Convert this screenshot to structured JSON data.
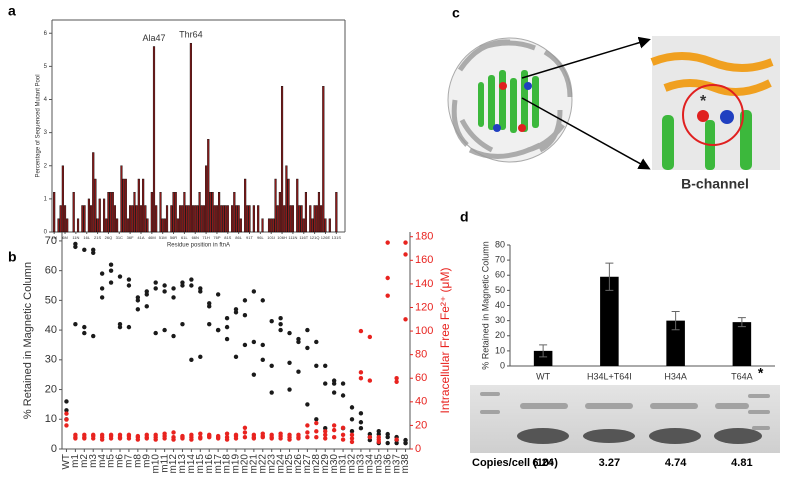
{
  "chart_data": [
    {
      "type": "bar",
      "panel": "a",
      "ylabel": "Percentage of Sequenced Mutant Pool",
      "xlabel": "Residue position in ftnA",
      "x": [
        1,
        3,
        4,
        5,
        6,
        7,
        10,
        12,
        14,
        15,
        17,
        18,
        19,
        20,
        21,
        22,
        24,
        25,
        26,
        27,
        28,
        29,
        30,
        32,
        33,
        34,
        35,
        36,
        37,
        38,
        39,
        40,
        41,
        42,
        43,
        44,
        46,
        47,
        48,
        50,
        51,
        52,
        53,
        55,
        56,
        57,
        58,
        59,
        60,
        61,
        62,
        63,
        64,
        65,
        66,
        67,
        68,
        69,
        70,
        71,
        72,
        73,
        74,
        75,
        76,
        77,
        78,
        79,
        80,
        81,
        83,
        84,
        85,
        86,
        87,
        89,
        90,
        91,
        93,
        95,
        97,
        100,
        101,
        102,
        103,
        104,
        105,
        106,
        107,
        108,
        109,
        110,
        111,
        113,
        114,
        115,
        116,
        117,
        119,
        120,
        121,
        122,
        123,
        124,
        125,
        126,
        128,
        131
      ],
      "values": [
        1.2,
        0.4,
        0.8,
        2.0,
        0.8,
        0.4,
        1.2,
        0.4,
        0.8,
        0.8,
        1.0,
        0.8,
        2.4,
        1.6,
        0.4,
        1.0,
        1.0,
        0.4,
        1.2,
        1.2,
        1.2,
        0.8,
        0.4,
        2.0,
        1.6,
        1.6,
        0.4,
        0.8,
        0.8,
        1.2,
        0.8,
        1.6,
        0.8,
        1.6,
        0.8,
        0.4,
        1.2,
        5.6,
        0.8,
        1.2,
        0.4,
        0.4,
        0.8,
        0.8,
        1.2,
        1.2,
        0.4,
        0.8,
        0.8,
        1.2,
        0.8,
        0.8,
        5.7,
        0.8,
        0.8,
        0.8,
        1.2,
        0.8,
        0.8,
        2.0,
        2.8,
        1.2,
        1.2,
        0.8,
        0.8,
        1.2,
        0.8,
        0.8,
        0.8,
        0.8,
        0.8,
        1.2,
        0.8,
        0.8,
        0.4,
        1.6,
        0.8,
        0.8,
        0.8,
        0.8,
        0.4,
        0.4,
        0.4,
        0.4,
        1.6,
        0.8,
        1.2,
        4.4,
        0.8,
        2.0,
        1.6,
        0.8,
        0.8,
        1.6,
        0.8,
        0.8,
        0.4,
        1.2,
        0.8,
        0.4,
        0.8,
        0.8,
        1.2,
        0.8,
        4.4,
        0.4,
        0.4,
        1.2
      ],
      "color": "#8b1a1a",
      "annotations": [
        {
          "label": "Ala47",
          "x": 47,
          "y": 5.6
        },
        {
          "label": "Thr64",
          "x": 64,
          "y": 5.7
        }
      ],
      "xlim": [
        0,
        135
      ],
      "ylim": [
        0,
        6.4
      ],
      "yticks": [
        0,
        1,
        2,
        3,
        4,
        5,
        6
      ],
      "xticks": [
        {
          "value": 1,
          "label": "1M"
        },
        {
          "value": 6,
          "label": "6M"
        },
        {
          "value": 11,
          "label": "11N"
        },
        {
          "value": 16,
          "label": "16L"
        },
        {
          "value": 21,
          "label": "21S"
        },
        {
          "value": 26,
          "label": "26Q"
        },
        {
          "value": 31,
          "label": "31C"
        },
        {
          "value": 36,
          "label": "36F"
        },
        {
          "value": 41,
          "label": "41A"
        },
        {
          "value": 46,
          "label": "46M"
        },
        {
          "value": 51,
          "label": "51M"
        },
        {
          "value": 56,
          "label": "56R"
        },
        {
          "value": 61,
          "label": "61L"
        },
        {
          "value": 66,
          "label": "66N"
        },
        {
          "value": 71,
          "label": "71H"
        },
        {
          "value": 76,
          "label": "76P"
        },
        {
          "value": 81,
          "label": "81S"
        },
        {
          "value": 86,
          "label": "86L"
        },
        {
          "value": 91,
          "label": "91T"
        },
        {
          "value": 96,
          "label": "96L"
        },
        {
          "value": 101,
          "label": "101I"
        },
        {
          "value": 106,
          "label": "106H"
        },
        {
          "value": 111,
          "label": "111N"
        },
        {
          "value": 116,
          "label": "116T"
        },
        {
          "value": 121,
          "label": "121Q"
        },
        {
          "value": 126,
          "label": "126E"
        },
        {
          "value": 131,
          "label": "131S"
        }
      ]
    },
    {
      "type": "scatter",
      "panel": "b",
      "ylabel": "% Retained in Magnetic Column",
      "y2label": "Intracellular Free Fe²⁺ (μM)",
      "categories": [
        "WT",
        "m1",
        "m2",
        "m3",
        "m4",
        "m5",
        "m6",
        "m7",
        "m8",
        "m9",
        "m10",
        "m11",
        "m12",
        "m13",
        "m14",
        "m15",
        "m16",
        "m17",
        "m18",
        "m19",
        "m20",
        "m21",
        "m22",
        "m23",
        "m24",
        "m25",
        "m26",
        "m27",
        "m28",
        "m29",
        "m30",
        "m31",
        "m32",
        "m33",
        "m34",
        "m35",
        "m36",
        "m37",
        "m38"
      ],
      "series": [
        {
          "color": "#1a1a1a",
          "values": [
            [
              16,
              13,
              10
            ],
            [
              69,
              68,
              42
            ],
            [
              67,
              41,
              39
            ],
            [
              67,
              66,
              38
            ],
            [
              59,
              54,
              51
            ],
            [
              62,
              60,
              56
            ],
            [
              58,
              42,
              41
            ],
            [
              57,
              55,
              41
            ],
            [
              51,
              50,
              47
            ],
            [
              53,
              52,
              48
            ],
            [
              56,
              54,
              39
            ],
            [
              55,
              53,
              40
            ],
            [
              54,
              51,
              38
            ],
            [
              56,
              55,
              42
            ],
            [
              57,
              55,
              30
            ],
            [
              54,
              53,
              31
            ],
            [
              49,
              48,
              42
            ],
            [
              52,
              40,
              40
            ],
            [
              44,
              41,
              37
            ],
            [
              47,
              46,
              31
            ],
            [
              50,
              45,
              35
            ],
            [
              53,
              36,
              25
            ],
            [
              50,
              35,
              30
            ],
            [
              43,
              28,
              19
            ],
            [
              44,
              42,
              40
            ],
            [
              39,
              29,
              20
            ],
            [
              37,
              36,
              26
            ],
            [
              40,
              34,
              15
            ],
            [
              36,
              28,
              10
            ],
            [
              28,
              22,
              7
            ],
            [
              23,
              22,
              19
            ],
            [
              22,
              18,
              7
            ],
            [
              14,
              10,
              6
            ],
            [
              12,
              9,
              7
            ],
            [
              5,
              4,
              3
            ],
            [
              6,
              5,
              2
            ],
            [
              5,
              4,
              2
            ],
            [
              4,
              3,
              2
            ],
            [
              3,
              2,
              2
            ]
          ]
        },
        {
          "color": "#e8231f",
          "axis": "y2",
          "values": [
            [
              30,
              25,
              20
            ],
            [
              10,
              12,
              9
            ],
            [
              12,
              9,
              10
            ],
            [
              11,
              12,
              9
            ],
            [
              10,
              12,
              8
            ],
            [
              11,
              9,
              12
            ],
            [
              10,
              12,
              9
            ],
            [
              12,
              9,
              11
            ],
            [
              10,
              11,
              8
            ],
            [
              9,
              12,
              10
            ],
            [
              12,
              10,
              8
            ],
            [
              11,
              13,
              9
            ],
            [
              14,
              10,
              8
            ],
            [
              9,
              11,
              10
            ],
            [
              12,
              10,
              8
            ],
            [
              10,
              13,
              9
            ],
            [
              12,
              10,
              11
            ],
            [
              9,
              11,
              10
            ],
            [
              13,
              10,
              8
            ],
            [
              12,
              11,
              9
            ],
            [
              18,
              14,
              10
            ],
            [
              12,
              10,
              9
            ],
            [
              11,
              13,
              10
            ],
            [
              12,
              9,
              10
            ],
            [
              13,
              11,
              9
            ],
            [
              10,
              12,
              8
            ],
            [
              12,
              10,
              9
            ],
            [
              20,
              14,
              10
            ],
            [
              22,
              15,
              10
            ],
            [
              15,
              12,
              9
            ],
            [
              20,
              16,
              10
            ],
            [
              18,
              12,
              8
            ],
            [
              12,
              9,
              6
            ],
            [
              100,
              65,
              60
            ],
            [
              95,
              58,
              10
            ],
            [
              10,
              8,
              6
            ],
            [
              145,
              130,
              175
            ],
            [
              60,
              57,
              8
            ],
            [
              175,
              165,
              110
            ]
          ]
        }
      ],
      "ylim": [
        0,
        73
      ],
      "yticks": [
        0,
        10,
        20,
        30,
        40,
        50,
        60,
        70
      ],
      "y2lim": [
        0,
        184
      ],
      "y2ticks": [
        0,
        20,
        40,
        60,
        80,
        100,
        120,
        140,
        160,
        180
      ]
    },
    {
      "type": "bar",
      "panel": "d",
      "ylabel": "% Retained in Magnetic Column",
      "categories": [
        "WT",
        "H34L+T64I",
        "H34A",
        "T64A"
      ],
      "values": [
        10,
        59,
        30,
        29
      ],
      "errors": [
        4,
        9,
        6,
        3
      ],
      "color": "#000000",
      "note": "*",
      "ylim": [
        0,
        80
      ],
      "yticks": [
        0,
        10,
        20,
        30,
        40,
        50,
        60,
        70,
        80
      ],
      "row_label": "Copies/cell (10⁵)",
      "copies": [
        6.24,
        3.27,
        4.74,
        4.81
      ]
    }
  ],
  "panel_c": {
    "label": "c",
    "caption": "B-channel",
    "marker": "*"
  }
}
